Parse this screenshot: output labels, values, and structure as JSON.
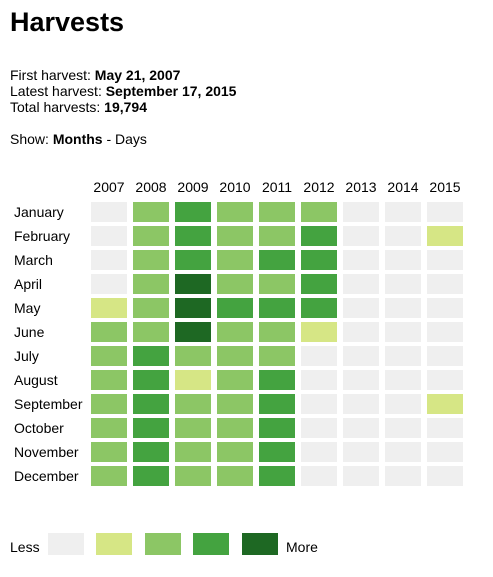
{
  "title": "Harvests",
  "stats": {
    "first_label": "First harvest:",
    "first_value": "May 21, 2007",
    "latest_label": "Latest harvest:",
    "latest_value": "September 17, 2015",
    "total_label": "Total harvests:",
    "total_value": "19,794"
  },
  "show": {
    "label": "Show:",
    "active": "Months",
    "separator": "-",
    "other": "Days"
  },
  "palette": [
    "#efefef",
    "#d6e685",
    "#8cc665",
    "#44a340",
    "#1e6823"
  ],
  "years": [
    "2007",
    "2008",
    "2009",
    "2010",
    "2011",
    "2012",
    "2013",
    "2014",
    "2015"
  ],
  "months": [
    "January",
    "February",
    "March",
    "April",
    "May",
    "June",
    "July",
    "August",
    "September",
    "October",
    "November",
    "December"
  ],
  "levels": [
    [
      0,
      2,
      3,
      2,
      2,
      2,
      0,
      0,
      0
    ],
    [
      0,
      2,
      3,
      2,
      2,
      3,
      0,
      0,
      1
    ],
    [
      0,
      2,
      3,
      2,
      3,
      3,
      0,
      0,
      0
    ],
    [
      0,
      2,
      4,
      2,
      2,
      3,
      0,
      0,
      0
    ],
    [
      1,
      2,
      4,
      3,
      3,
      3,
      0,
      0,
      0
    ],
    [
      2,
      2,
      4,
      2,
      2,
      1,
      0,
      0,
      0
    ],
    [
      2,
      3,
      2,
      2,
      2,
      0,
      0,
      0,
      0
    ],
    [
      2,
      3,
      1,
      2,
      3,
      0,
      0,
      0,
      0
    ],
    [
      2,
      3,
      2,
      2,
      3,
      0,
      0,
      0,
      1
    ],
    [
      2,
      3,
      2,
      2,
      3,
      0,
      0,
      0,
      0
    ],
    [
      2,
      3,
      2,
      2,
      3,
      0,
      0,
      0,
      0
    ],
    [
      2,
      3,
      2,
      2,
      3,
      0,
      0,
      0,
      0
    ]
  ],
  "legend": {
    "less": "Less",
    "more": "More"
  }
}
